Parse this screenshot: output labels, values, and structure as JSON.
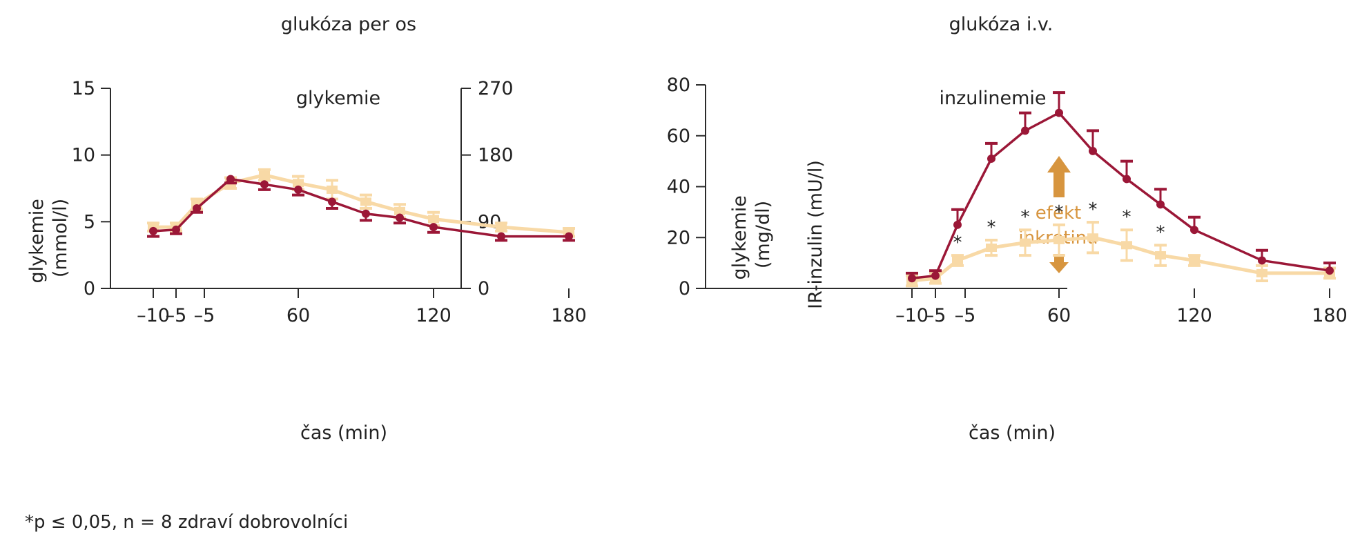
{
  "colors": {
    "dark": "#9b1737",
    "light": "#f8d9a6",
    "annotation": "#d7953f",
    "axis": "#2b2b2b"
  },
  "footnote": "*p ≤ 0,05, n = 8 zdraví dobrovolníci",
  "chart_data": [
    {
      "type": "line",
      "title": "glukóza per os",
      "subtitle": "glykemie",
      "xlabel": "čas (min)",
      "ylabel": "glykemie (mmol/l)",
      "y2label": "",
      "x_tick_labels": [
        "–10",
        "–5",
        "–5",
        "60",
        "120",
        "180"
      ],
      "x": [
        -10,
        0,
        15,
        30,
        45,
        60,
        75,
        90,
        105,
        120,
        150,
        180
      ],
      "ylim": [
        0,
        15
      ],
      "yticks": [
        0,
        5,
        10,
        15
      ],
      "y2lim": [
        0,
        270
      ],
      "y2ticks": [
        0,
        90,
        180,
        270
      ],
      "series": [
        {
          "color": "dark",
          "values": [
            4.3,
            4.4,
            6.0,
            8.2,
            7.8,
            7.4,
            6.5,
            5.6,
            5.3,
            4.6,
            3.9,
            3.9
          ],
          "errors": [
            0.4,
            0.3,
            0.3,
            0.3,
            0.4,
            0.4,
            0.5,
            0.5,
            0.4,
            0.4,
            0.3,
            0.3
          ]
        },
        {
          "color": "light",
          "values": [
            4.6,
            4.6,
            6.3,
            7.9,
            8.5,
            7.9,
            7.4,
            6.5,
            5.8,
            5.2,
            4.6,
            4.2
          ],
          "errors": [
            0.3,
            0.3,
            0.4,
            0.4,
            0.4,
            0.5,
            0.7,
            0.5,
            0.5,
            0.5,
            0.3,
            0.3
          ]
        }
      ]
    },
    {
      "type": "line",
      "title": "glukóza i.v.",
      "subtitle": "inzulinemie",
      "xlabel": "čas (min)",
      "ylabel": "IR-inzulin (mU/l)",
      "ylabel_outer": "glykemie (mg/dl)",
      "x_tick_labels": [
        "–10",
        "–5",
        "–5",
        "60",
        "120",
        "180"
      ],
      "x": [
        -10,
        0,
        15,
        30,
        45,
        60,
        75,
        90,
        105,
        120,
        150,
        180
      ],
      "ylim": [
        0,
        80
      ],
      "yticks": [
        0,
        20,
        40,
        60,
        80
      ],
      "significance_marker": "*",
      "significant_x": [
        15,
        30,
        45,
        60,
        75,
        90,
        105
      ],
      "annotation": [
        "efekt",
        "inkretinu"
      ],
      "series": [
        {
          "color": "dark",
          "values": [
            4,
            5,
            25,
            51,
            62,
            69,
            54,
            43,
            33,
            23,
            11,
            7
          ],
          "errors": [
            2,
            2,
            6,
            6,
            7,
            8,
            8,
            7,
            6,
            5,
            4,
            3
          ]
        },
        {
          "color": "light",
          "values": [
            3,
            4,
            11,
            16,
            18,
            19,
            20,
            17,
            13,
            11,
            6,
            6
          ],
          "errors": [
            2,
            2,
            2,
            3,
            5,
            6,
            6,
            6,
            4,
            2,
            3,
            2
          ]
        }
      ]
    }
  ]
}
